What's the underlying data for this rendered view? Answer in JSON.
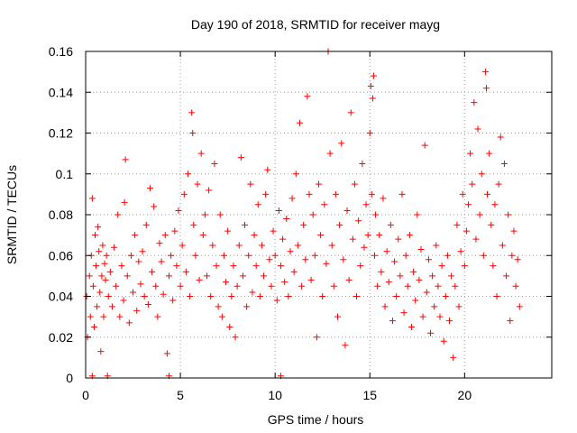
{
  "chart_data": {
    "type": "scatter",
    "title": "Day 190 of 2018, SRMTID for receiver mayg",
    "xlabel": "GPS time / hours",
    "ylabel": "SRMTID / TECUs",
    "xlim": [
      0,
      24.6
    ],
    "ylim": [
      0,
      0.16
    ],
    "xticks": [
      0,
      5,
      10,
      15,
      20
    ],
    "xtick_labels": [
      "0",
      "5",
      "10",
      "15",
      "20"
    ],
    "yticks": [
      0,
      0.02,
      0.04,
      0.06,
      0.08,
      0.1,
      0.12,
      0.14,
      0.16
    ],
    "ytick_labels": [
      "0",
      "0.02",
      "0.04",
      "0.06",
      "0.08",
      "0.1",
      "0.12",
      "0.14",
      "0.16"
    ],
    "grid": true,
    "marker": "plus",
    "series": [
      {
        "name": "SRMTID",
        "color": "#ff0000",
        "points": [
          [
            0.05,
            0.04
          ],
          [
            0.1,
            0.02
          ],
          [
            0.2,
            0.05
          ],
          [
            0.25,
            0.03
          ],
          [
            0.3,
            0.06
          ],
          [
            0.35,
            0.088
          ],
          [
            0.4,
            0.045
          ],
          [
            0.45,
            0.025
          ],
          [
            0.5,
            0.07
          ],
          [
            0.55,
            0.055
          ],
          [
            0.6,
            0.035
          ],
          [
            0.65,
            0.074
          ],
          [
            0.7,
            0.062
          ],
          [
            0.75,
            0.042
          ],
          [
            0.8,
            0.013
          ],
          [
            0.85,
            0.05
          ],
          [
            0.9,
            0.065
          ],
          [
            0.95,
            0.03
          ],
          [
            1.0,
            0.056
          ],
          [
            1.05,
            0.048
          ],
          [
            1.1,
            0.06
          ],
          [
            1.2,
            0.04
          ],
          [
            1.3,
            0.052
          ],
          [
            1.4,
            0.035
          ],
          [
            1.5,
            0.064
          ],
          [
            1.6,
            0.045
          ],
          [
            1.7,
            0.08
          ],
          [
            1.8,
            0.03
          ],
          [
            1.9,
            0.055
          ],
          [
            2.0,
            0.038
          ],
          [
            2.05,
            0.086
          ],
          [
            2.1,
            0.107
          ],
          [
            2.2,
            0.05
          ],
          [
            2.3,
            0.027
          ],
          [
            2.4,
            0.06
          ],
          [
            2.5,
            0.042
          ],
          [
            2.6,
            0.07
          ],
          [
            2.7,
            0.033
          ],
          [
            2.8,
            0.057
          ],
          [
            2.9,
            0.046
          ],
          [
            3.0,
            0.062
          ],
          [
            3.1,
            0.04
          ],
          [
            3.2,
            0.075
          ],
          [
            3.3,
            0.036
          ],
          [
            3.4,
            0.093
          ],
          [
            3.5,
            0.052
          ],
          [
            3.6,
            0.084
          ],
          [
            3.7,
            0.045
          ],
          [
            3.8,
            0.03
          ],
          [
            3.9,
            0.066
          ],
          [
            4.0,
            0.057
          ],
          [
            4.1,
            0.041
          ],
          [
            4.2,
            0.07
          ],
          [
            4.3,
            0.012
          ],
          [
            4.4,
            0.05
          ],
          [
            4.5,
            0.06
          ],
          [
            4.6,
            0.038
          ],
          [
            4.7,
            0.072
          ],
          [
            4.8,
            0.055
          ],
          [
            4.9,
            0.082
          ],
          [
            5.0,
            0.045
          ],
          [
            5.1,
            0.065
          ],
          [
            5.2,
            0.09
          ],
          [
            5.3,
            0.052
          ],
          [
            5.4,
            0.1
          ],
          [
            5.5,
            0.04
          ],
          [
            5.6,
            0.13
          ],
          [
            5.65,
            0.12
          ],
          [
            5.7,
            0.075
          ],
          [
            5.8,
            0.06
          ],
          [
            5.9,
            0.095
          ],
          [
            6.0,
            0.048
          ],
          [
            6.1,
            0.11
          ],
          [
            6.2,
            0.07
          ],
          [
            6.3,
            0.08
          ],
          [
            6.4,
            0.05
          ],
          [
            6.5,
            0.092
          ],
          [
            6.6,
            0.04
          ],
          [
            6.7,
            0.065
          ],
          [
            6.8,
            0.105
          ],
          [
            6.9,
            0.055
          ],
          [
            7.0,
            0.035
          ],
          [
            7.1,
            0.08
          ],
          [
            7.2,
            0.03
          ],
          [
            7.3,
            0.06
          ],
          [
            7.4,
            0.047
          ],
          [
            7.5,
            0.072
          ],
          [
            7.6,
            0.025
          ],
          [
            7.7,
            0.04
          ],
          [
            7.8,
            0.055
          ],
          [
            7.9,
            0.02
          ],
          [
            8.0,
            0.045
          ],
          [
            8.1,
            0.065
          ],
          [
            8.2,
            0.108
          ],
          [
            8.3,
            0.05
          ],
          [
            8.4,
            0.075
          ],
          [
            8.5,
            0.035
          ],
          [
            8.6,
            0.06
          ],
          [
            8.7,
            0.095
          ],
          [
            8.8,
            0.042
          ],
          [
            8.9,
            0.07
          ],
          [
            9.0,
            0.055
          ],
          [
            9.1,
            0.085
          ],
          [
            9.2,
            0.04
          ],
          [
            9.3,
            0.065
          ],
          [
            9.4,
            0.05
          ],
          [
            9.5,
            0.09
          ],
          [
            9.6,
            0.102
          ],
          [
            9.7,
            0.058
          ],
          [
            9.8,
            0.045
          ],
          [
            9.9,
            0.072
          ],
          [
            10.0,
            0.06
          ],
          [
            10.1,
            0.038
          ],
          [
            10.2,
            0.082
          ],
          [
            10.3,
            0.055
          ],
          [
            10.4,
            0.068
          ],
          [
            10.5,
            0.047
          ],
          [
            10.6,
            0.078
          ],
          [
            10.7,
            0.04
          ],
          [
            10.8,
            0.062
          ],
          [
            10.9,
            0.088
          ],
          [
            11.0,
            0.052
          ],
          [
            11.1,
            0.1
          ],
          [
            11.2,
            0.065
          ],
          [
            11.3,
            0.125
          ],
          [
            11.4,
            0.045
          ],
          [
            11.5,
            0.075
          ],
          [
            11.6,
            0.058
          ],
          [
            11.7,
            0.138
          ],
          [
            11.8,
            0.09
          ],
          [
            11.9,
            0.048
          ],
          [
            12.0,
            0.08
          ],
          [
            12.1,
            0.06
          ],
          [
            12.2,
            0.02
          ],
          [
            12.3,
            0.095
          ],
          [
            12.4,
            0.07
          ],
          [
            12.5,
            0.04
          ],
          [
            12.6,
            0.085
          ],
          [
            12.7,
            0.056
          ],
          [
            12.8,
            0.16
          ],
          [
            12.9,
            0.11
          ],
          [
            13.0,
            0.065
          ],
          [
            13.1,
            0.045
          ],
          [
            13.2,
            0.09
          ],
          [
            13.3,
            0.03
          ],
          [
            13.4,
            0.075
          ],
          [
            13.5,
            0.115
          ],
          [
            13.6,
            0.058
          ],
          [
            13.7,
            0.016
          ],
          [
            13.8,
            0.082
          ],
          [
            13.9,
            0.048
          ],
          [
            14.0,
            0.13
          ],
          [
            14.1,
            0.068
          ],
          [
            14.2,
            0.095
          ],
          [
            14.3,
            0.04
          ],
          [
            14.4,
            0.077
          ],
          [
            14.5,
            0.055
          ],
          [
            14.6,
            0.105
          ],
          [
            14.7,
            0.064
          ],
          [
            14.8,
            0.085
          ],
          [
            14.9,
            0.07
          ],
          [
            15.0,
            0.12
          ],
          [
            15.05,
            0.143
          ],
          [
            15.1,
            0.09
          ],
          [
            15.15,
            0.137
          ],
          [
            15.2,
            0.148
          ],
          [
            15.25,
            0.06
          ],
          [
            15.3,
            0.08
          ],
          [
            15.4,
            0.045
          ],
          [
            15.5,
            0.07
          ],
          [
            15.6,
            0.052
          ],
          [
            15.7,
            0.088
          ],
          [
            15.8,
            0.035
          ],
          [
            15.9,
            0.062
          ],
          [
            16.0,
            0.047
          ],
          [
            16.1,
            0.075
          ],
          [
            16.2,
            0.028
          ],
          [
            16.3,
            0.057
          ],
          [
            16.4,
            0.04
          ],
          [
            16.5,
            0.068
          ],
          [
            16.6,
            0.05
          ],
          [
            16.7,
            0.09
          ],
          [
            16.8,
            0.032
          ],
          [
            16.9,
            0.06
          ],
          [
            17.0,
            0.045
          ],
          [
            17.1,
            0.07
          ],
          [
            17.2,
            0.025
          ],
          [
            17.3,
            0.052
          ],
          [
            17.4,
            0.038
          ],
          [
            17.5,
            0.08
          ],
          [
            17.6,
            0.048
          ],
          [
            17.7,
            0.063
          ],
          [
            17.8,
            0.03
          ],
          [
            17.9,
            0.114
          ],
          [
            18.0,
            0.042
          ],
          [
            18.1,
            0.058
          ],
          [
            18.2,
            0.022
          ],
          [
            18.3,
            0.05
          ],
          [
            18.4,
            0.035
          ],
          [
            18.5,
            0.065
          ],
          [
            18.6,
            0.045
          ],
          [
            18.7,
            0.03
          ],
          [
            18.8,
            0.055
          ],
          [
            18.9,
            0.018
          ],
          [
            19.0,
            0.04
          ],
          [
            19.1,
            0.06
          ],
          [
            19.2,
            0.028
          ],
          [
            19.3,
            0.05
          ],
          [
            19.4,
            0.01
          ],
          [
            19.5,
            0.045
          ],
          [
            19.6,
            0.075
          ],
          [
            19.7,
            0.035
          ],
          [
            19.8,
            0.062
          ],
          [
            19.9,
            0.09
          ],
          [
            20.0,
            0.055
          ],
          [
            20.1,
            0.072
          ],
          [
            20.2,
            0.085
          ],
          [
            20.3,
            0.11
          ],
          [
            20.4,
            0.095
          ],
          [
            20.5,
            0.135
          ],
          [
            20.6,
            0.068
          ],
          [
            20.7,
            0.122
          ],
          [
            20.8,
            0.08
          ],
          [
            20.9,
            0.1
          ],
          [
            21.0,
            0.06
          ],
          [
            21.1,
            0.15
          ],
          [
            21.15,
            0.142
          ],
          [
            21.2,
            0.09
          ],
          [
            21.3,
            0.11
          ],
          [
            21.4,
            0.075
          ],
          [
            21.5,
            0.055
          ],
          [
            21.6,
            0.085
          ],
          [
            21.7,
            0.04
          ],
          [
            21.8,
            0.095
          ],
          [
            21.9,
            0.118
          ],
          [
            22.0,
            0.065
          ],
          [
            22.1,
            0.105
          ],
          [
            22.2,
            0.05
          ],
          [
            22.3,
            0.08
          ],
          [
            22.4,
            0.028
          ],
          [
            22.5,
            0.06
          ],
          [
            22.6,
            0.072
          ],
          [
            22.7,
            0.045
          ],
          [
            22.8,
            0.058
          ],
          [
            22.9,
            0.035
          ],
          [
            0.35,
            0.001
          ],
          [
            1.15,
            0.001
          ],
          [
            4.4,
            0.001
          ],
          [
            10.3,
            0.001
          ]
        ]
      }
    ]
  }
}
